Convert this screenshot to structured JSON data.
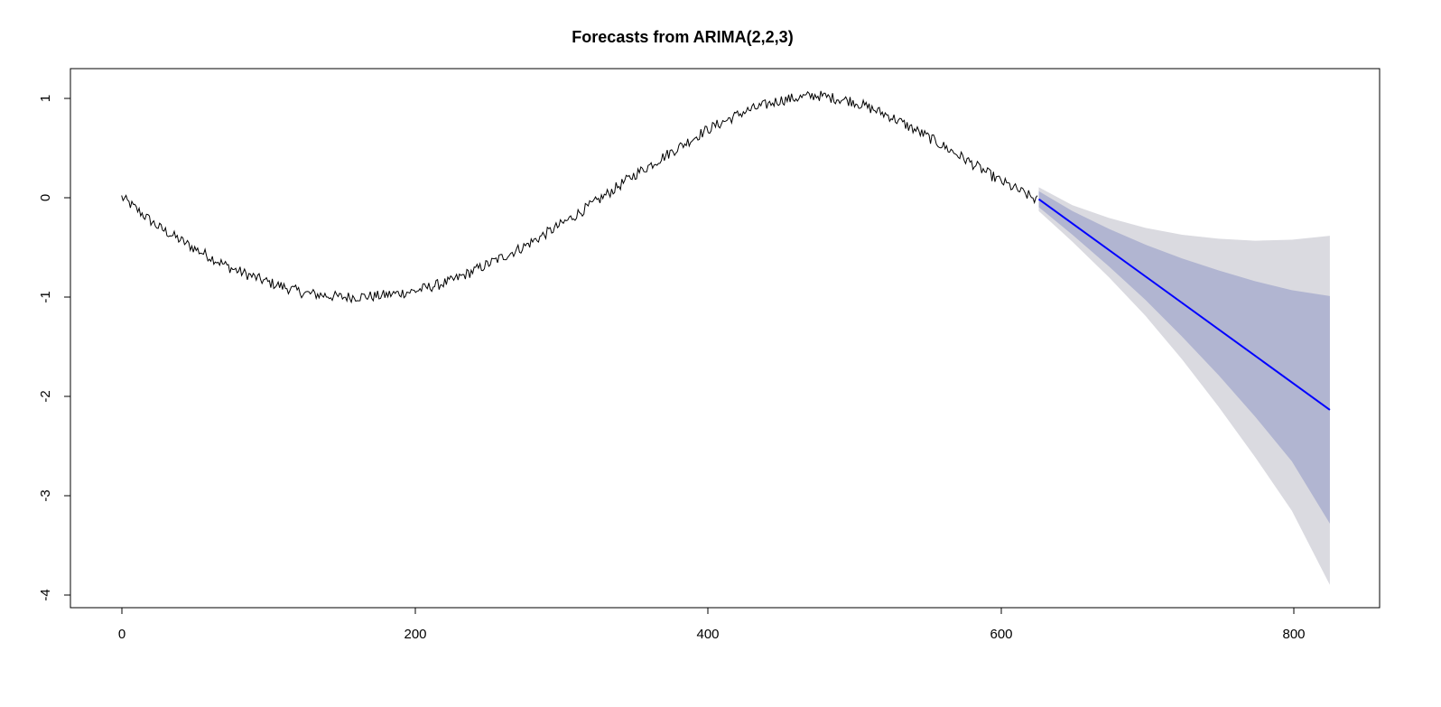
{
  "chart_data": {
    "type": "line",
    "title": "Forecasts from ARIMA(2,2,3)",
    "xlabel": "",
    "ylabel": "",
    "xlim": [
      -35,
      860
    ],
    "ylim": [
      -4.15,
      1.3
    ],
    "x_ticks": [
      "0",
      "200",
      "400",
      "600",
      "800"
    ],
    "y_ticks": [
      "1",
      "0",
      "-1",
      "-2",
      "-3",
      "-4"
    ],
    "grid": false,
    "legend": "none",
    "series": [
      {
        "kind": "observed",
        "color": "#000000",
        "x": [
          0,
          25,
          50,
          75,
          100,
          125,
          150,
          175,
          200,
          225,
          250,
          275,
          300,
          325,
          350,
          375,
          400,
          425,
          450,
          475,
          500,
          525,
          550,
          575,
          600,
          626
        ],
        "y": [
          0.0,
          -0.3,
          -0.52,
          -0.72,
          -0.86,
          -0.97,
          -1.01,
          -1.0,
          -0.95,
          -0.85,
          -0.68,
          -0.5,
          -0.28,
          -0.04,
          0.22,
          0.45,
          0.68,
          0.86,
          0.98,
          1.03,
          0.97,
          0.82,
          0.62,
          0.4,
          0.17,
          -0.03
        ]
      },
      {
        "kind": "forecast",
        "color": "#0000ff",
        "x": [
          627,
          826
        ],
        "y": [
          -0.02,
          -2.15
        ]
      }
    ],
    "intervals": [
      {
        "level": "95",
        "color": "#dadae0",
        "x": [
          627,
          650,
          675,
          700,
          725,
          750,
          775,
          800,
          826
        ],
        "upper": [
          0.1,
          -0.08,
          -0.21,
          -0.31,
          -0.38,
          -0.42,
          -0.44,
          -0.43,
          -0.39
        ],
        "lower": [
          -0.14,
          -0.45,
          -0.81,
          -1.2,
          -1.64,
          -2.12,
          -2.63,
          -3.17,
          -3.92
        ]
      },
      {
        "level": "80",
        "color": "#b1b5d1",
        "x": [
          627,
          650,
          675,
          700,
          725,
          750,
          775,
          800,
          826
        ],
        "upper": [
          0.06,
          -0.14,
          -0.32,
          -0.48,
          -0.62,
          -0.74,
          -0.85,
          -0.94,
          -1.0
        ],
        "lower": [
          -0.1,
          -0.38,
          -0.7,
          -1.04,
          -1.41,
          -1.8,
          -2.22,
          -2.67,
          -3.3
        ]
      }
    ]
  }
}
